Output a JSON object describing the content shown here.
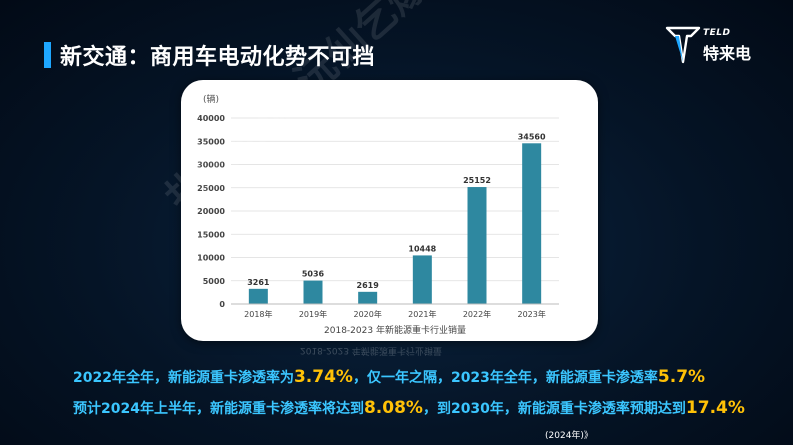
{
  "slide": {
    "title": "新交通：商用车电动化势不可挡",
    "source": "(2024年)》"
  },
  "logo": {
    "brand_en": "TELD",
    "brand_cn": "特来电"
  },
  "watermark": {
    "text": "扎由仝储·沅仙乞爆拍短势昕丕圉"
  },
  "chart_data": {
    "type": "bar",
    "title": "2018-2023 年新能源重卡行业销量",
    "ylabel": "(辆)",
    "xlabel": "",
    "categories": [
      "2018年",
      "2019年",
      "2020年",
      "2021年",
      "2022年",
      "2023年"
    ],
    "values": [
      3261,
      5036,
      2619,
      10448,
      25152,
      34560
    ],
    "data_labels": [
      "3261",
      "5036",
      "2619",
      "10448",
      "25152",
      "34560"
    ],
    "ylim": [
      0,
      40000
    ],
    "yticks": [
      "0",
      "5000",
      "10000",
      "15000",
      "20000",
      "25000",
      "30000",
      "35000",
      "40000"
    ],
    "yticks_values": [
      0,
      5000,
      10000,
      15000,
      20000,
      25000,
      30000,
      35000,
      40000
    ],
    "grid": true,
    "bar_color": "#2e88a0",
    "reflection_text": "2018-2023 年新能源重卡行业销量"
  },
  "text_lines": {
    "line1": {
      "p1": "2022年全年，新能源重卡渗透率为",
      "v1": "3.74%",
      "p2": "，仅一年之隔，2023年全年，新能源重卡渗透率",
      "v2": "5.7%"
    },
    "line2": {
      "p1": "预计2024年上半年，新能源重卡渗透率将达到",
      "v1": "8.08%",
      "p2": "，到2030年，新能源重卡渗透率预期达到",
      "v2": "17.4%"
    }
  },
  "colors": {
    "accent_blue": "#1ea7ff",
    "text_cyan": "#3bc6ff",
    "highlight_yellow": "#ffc107"
  }
}
